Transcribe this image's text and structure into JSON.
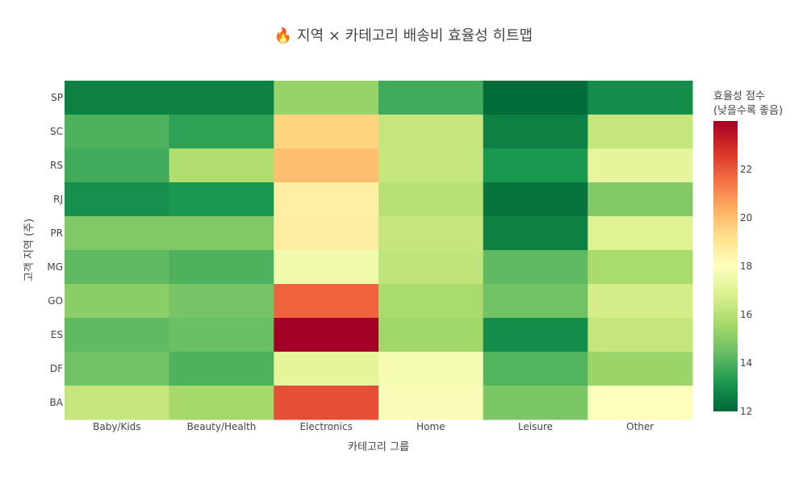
{
  "chart_data": {
    "type": "heatmap",
    "title": "🔥 지역 × 카테고리 배송비 효율성 히트맵",
    "xlabel": "카테고리 그룹",
    "ylabel": "고객 지역 (주)",
    "x": [
      "Baby/Kids",
      "Beauty/Health",
      "Electronics",
      "Home",
      "Leisure",
      "Other"
    ],
    "y": [
      "SP",
      "SC",
      "RS",
      "RJ",
      "PR",
      "MG",
      "GO",
      "ES",
      "DF",
      "BA"
    ],
    "z": [
      [
        12.6,
        12.6,
        15.3,
        13.8,
        12.1,
        12.9
      ],
      [
        14.0,
        13.5,
        19.5,
        16.3,
        12.6,
        16.3
      ],
      [
        13.8,
        15.8,
        20.0,
        16.3,
        13.2,
        17.2
      ],
      [
        13.0,
        13.2,
        18.6,
        16.0,
        12.3,
        14.9
      ],
      [
        14.9,
        14.9,
        18.7,
        16.3,
        12.6,
        17.0
      ],
      [
        14.3,
        14.0,
        17.6,
        16.2,
        14.3,
        15.7
      ],
      [
        15.1,
        14.7,
        21.8,
        15.7,
        14.6,
        16.7
      ],
      [
        14.3,
        14.5,
        24.0,
        15.5,
        12.9,
        16.3
      ],
      [
        14.6,
        14.0,
        17.2,
        17.7,
        14.1,
        15.4
      ],
      [
        16.3,
        15.6,
        22.2,
        17.8,
        14.8,
        17.9
      ]
    ],
    "zlim": [
      12,
      24
    ],
    "colorscale": "RdYlGn reversed",
    "colorbar": {
      "title_line1": "효율성 점수",
      "title_line2": "(낮을수록 좋음)",
      "ticks": [
        12,
        14,
        16,
        18,
        20,
        22
      ]
    },
    "grid": false
  }
}
